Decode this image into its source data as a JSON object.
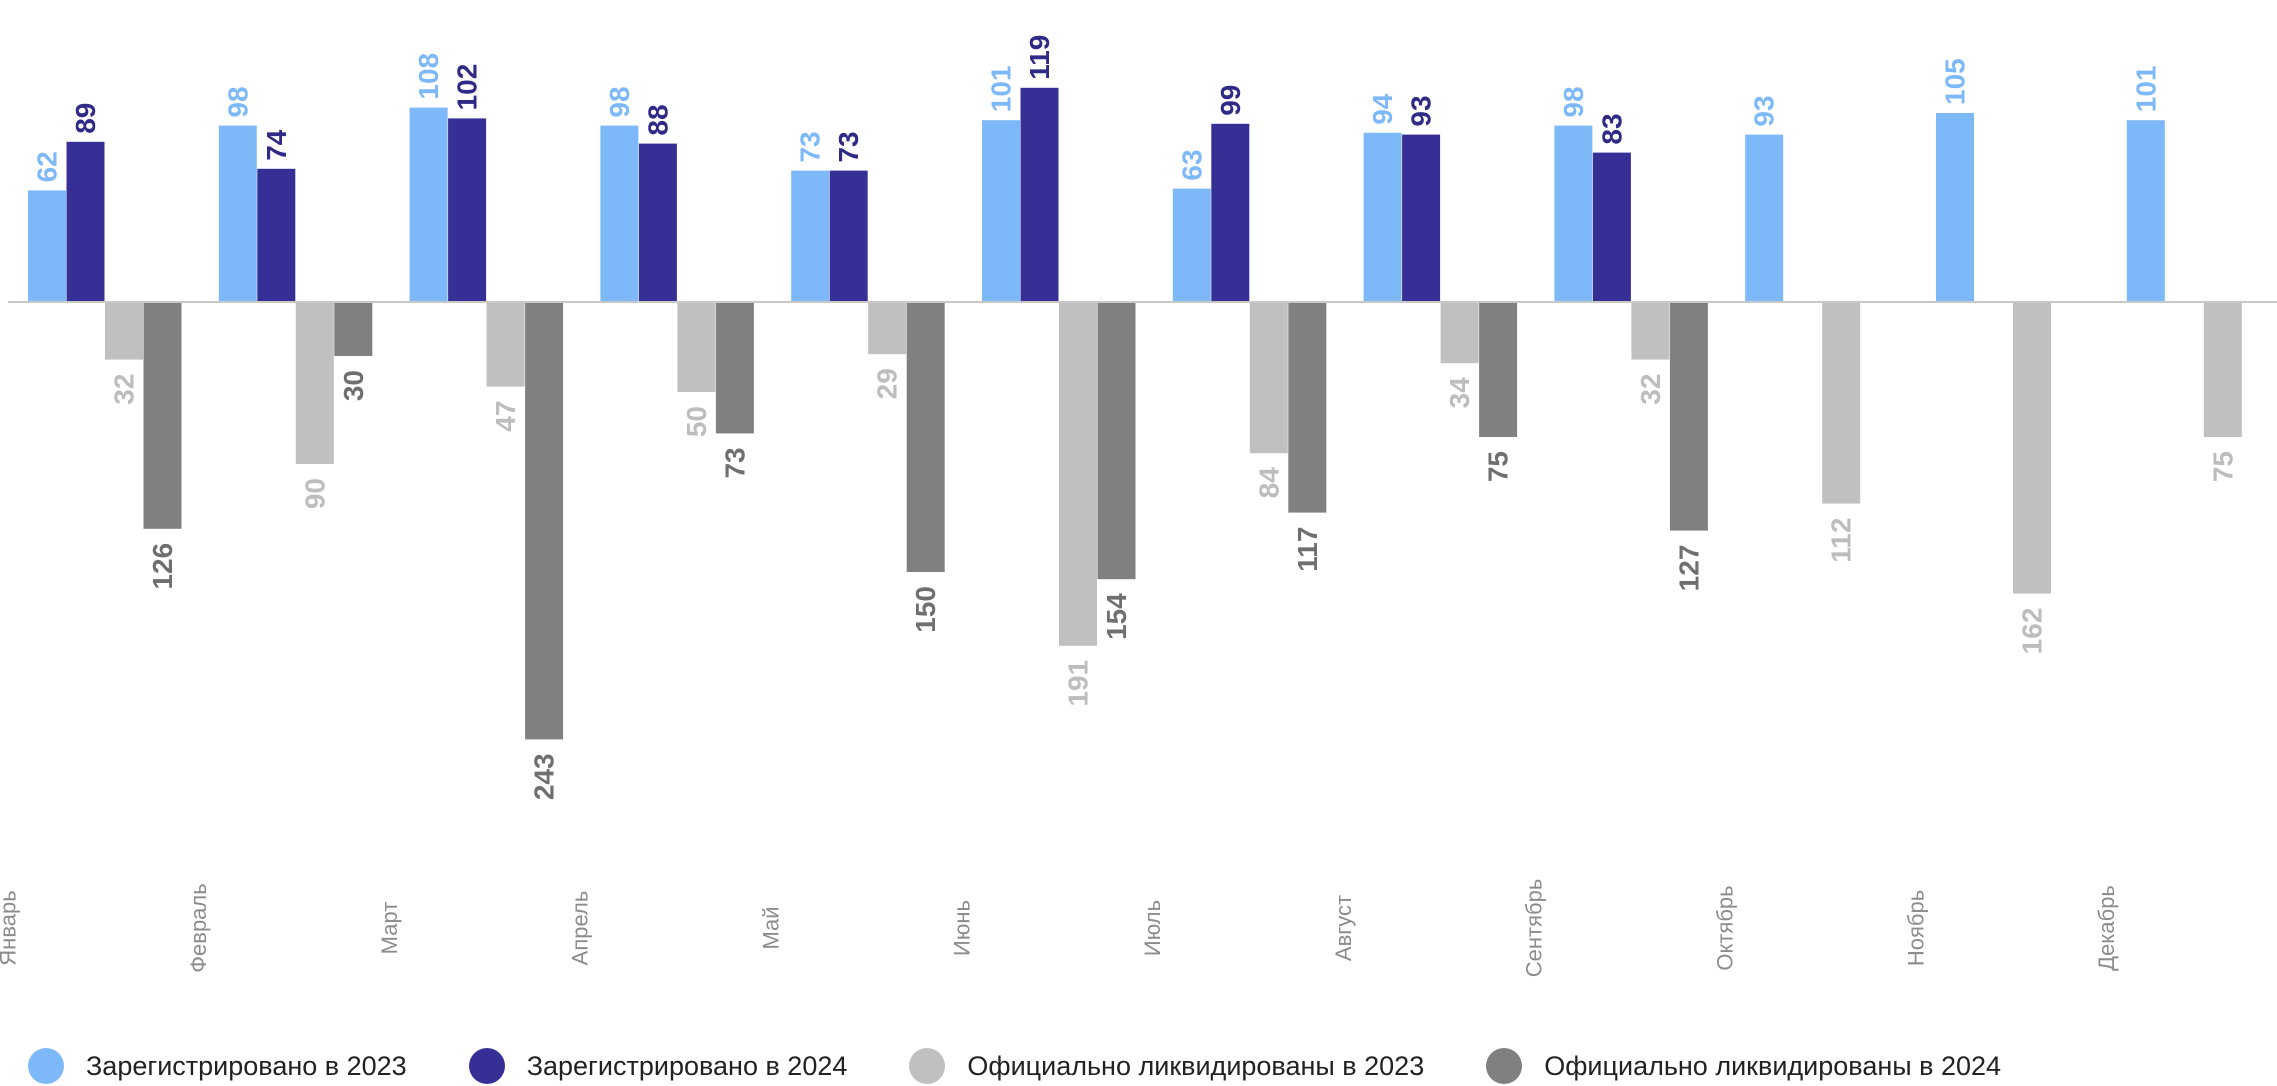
{
  "chart_data": {
    "type": "bar",
    "categories": [
      "Январь",
      "Февраль",
      "Март",
      "Апрель",
      "Май",
      "Июнь",
      "Июль",
      "Август",
      "Сентябрь",
      "Октябрь",
      "Ноябрь",
      "Декабрь"
    ],
    "series": [
      {
        "name": "Зарегистрировано в 2023",
        "color": "#7DB9F9",
        "label_color": "#7DB9F9",
        "direction": "up",
        "values": [
          62,
          98,
          108,
          98,
          73,
          101,
          63,
          94,
          98,
          93,
          105,
          101
        ]
      },
      {
        "name": "Зарегистрировано в 2024",
        "color": "#363096",
        "label_color": "#2F2A86",
        "direction": "up",
        "values": [
          89,
          74,
          102,
          88,
          73,
          119,
          99,
          93,
          83,
          null,
          null,
          null
        ]
      },
      {
        "name": "Официально ликвидированы в 2023",
        "color": "#C0C0C0",
        "label_color": "#BDBDBD",
        "direction": "down",
        "values": [
          32,
          90,
          47,
          50,
          29,
          191,
          84,
          34,
          32,
          112,
          162,
          75
        ]
      },
      {
        "name": "Официально ликвидированы в 2024",
        "color": "#808080",
        "label_color": "#6F6F6F",
        "direction": "down",
        "values": [
          126,
          30,
          243,
          73,
          150,
          154,
          117,
          75,
          127,
          null,
          null,
          null
        ]
      }
    ],
    "title": "",
    "xlabel": "",
    "ylabel": "",
    "grid": false,
    "legend_position": "bottom"
  }
}
